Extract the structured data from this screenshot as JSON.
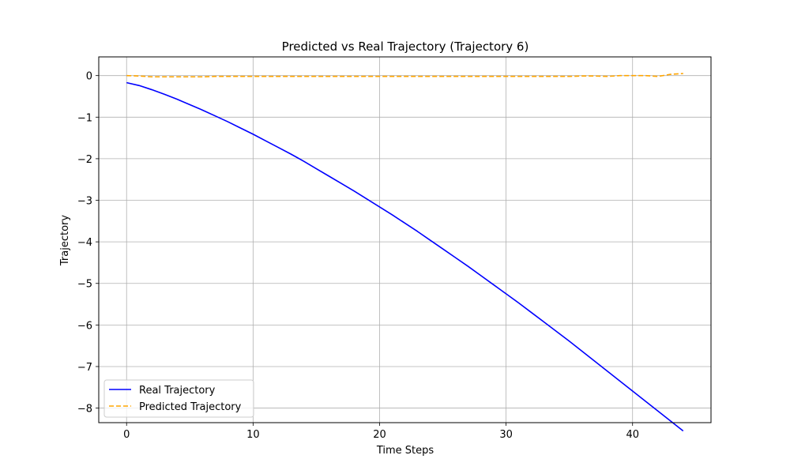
{
  "chart_data": {
    "type": "line",
    "title": "Predicted vs Real Trajectory (Trajectory 6)",
    "xlabel": "Time Steps",
    "ylabel": "Trajectory",
    "xlim": [
      -2.2,
      46.2
    ],
    "ylim": [
      -8.35,
      0.45
    ],
    "xticks": [
      0,
      10,
      20,
      30,
      40
    ],
    "yticks": [
      0,
      -1,
      -2,
      -3,
      -4,
      -5,
      -6,
      -7,
      -8
    ],
    "ytick_labels": [
      "0",
      "−1",
      "−2",
      "−3",
      "−4",
      "−5",
      "−6",
      "−7",
      "−8"
    ],
    "grid": true,
    "legend_position": "lower-left",
    "x": [
      0,
      1,
      2,
      3,
      4,
      5,
      6,
      7,
      8,
      9,
      10,
      11,
      12,
      13,
      14,
      15,
      16,
      17,
      18,
      19,
      20,
      21,
      22,
      23,
      24,
      25,
      26,
      27,
      28,
      29,
      30,
      31,
      32,
      33,
      34,
      35,
      36,
      37,
      38,
      39,
      40,
      41,
      42,
      43,
      44
    ],
    "series": [
      {
        "name": "Real Trajectory",
        "color": "#0000ff",
        "style": "solid",
        "values": [
          -0.17,
          -0.24,
          -0.34,
          -0.45,
          -0.57,
          -0.7,
          -0.83,
          -0.97,
          -1.11,
          -1.26,
          -1.41,
          -1.57,
          -1.73,
          -1.89,
          -2.06,
          -2.24,
          -2.42,
          -2.6,
          -2.78,
          -2.97,
          -3.16,
          -3.35,
          -3.55,
          -3.75,
          -3.96,
          -4.17,
          -4.38,
          -4.59,
          -4.81,
          -5.03,
          -5.25,
          -5.47,
          -5.7,
          -5.93,
          -6.16,
          -6.39,
          -6.63,
          -6.87,
          -7.11,
          -7.35,
          -7.59,
          -7.83,
          -8.07,
          -8.31,
          -8.55
        ]
      },
      {
        "name": "Predicted Trajectory",
        "color": "#ffa500",
        "style": "dashed",
        "values": [
          0.0,
          -0.01,
          -0.03,
          -0.03,
          -0.03,
          -0.03,
          -0.03,
          -0.02,
          -0.02,
          -0.02,
          -0.02,
          -0.02,
          -0.02,
          -0.02,
          -0.02,
          -0.02,
          -0.02,
          -0.02,
          -0.02,
          -0.02,
          -0.02,
          -0.02,
          -0.02,
          -0.02,
          -0.02,
          -0.02,
          -0.02,
          -0.02,
          -0.02,
          -0.02,
          -0.02,
          -0.02,
          -0.02,
          -0.02,
          -0.02,
          -0.02,
          -0.01,
          -0.01,
          -0.02,
          0.0,
          0.0,
          0.0,
          -0.02,
          0.03,
          0.05
        ]
      }
    ]
  }
}
